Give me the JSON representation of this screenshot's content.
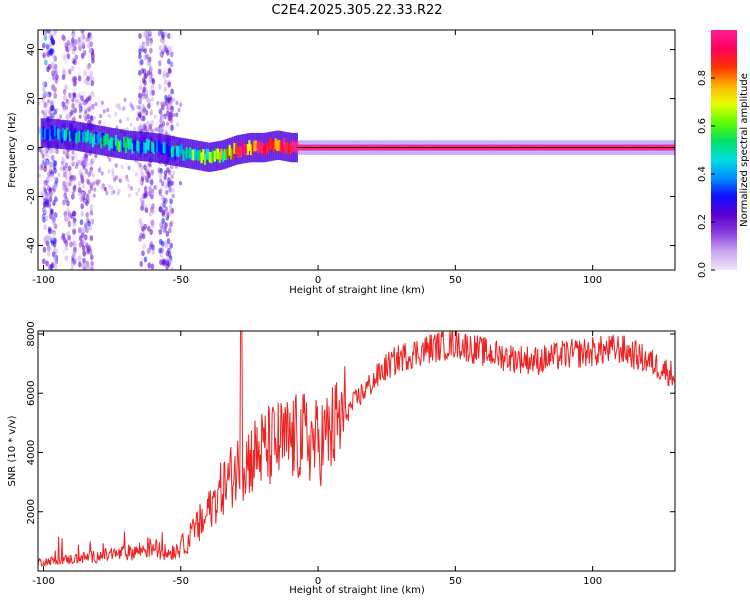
{
  "figure_title": "C2E4.2025.305.22.33.R22",
  "chart_data": [
    {
      "type": "heatmap",
      "xlabel": "Height of straight line (km)",
      "ylabel": "Frequency (Hz)",
      "xlim": [
        -102,
        130
      ],
      "ylim": [
        -50,
        48
      ],
      "x_ticks": [
        -100,
        -50,
        0,
        50,
        100
      ],
      "y_ticks": [
        -40,
        -20,
        0,
        20,
        40
      ],
      "colorbar": {
        "label": "Normalized spectral amplitude",
        "range": [
          0,
          1
        ],
        "ticks": [
          0.0,
          0.2,
          0.4,
          0.6,
          0.8
        ],
        "colors": [
          "#f0e6fb",
          "#c9a6f0",
          "#8a3fe0",
          "#5a00d0",
          "#1010ff",
          "#0090ff",
          "#00e0e0",
          "#00e060",
          "#60ff00",
          "#e8ff00",
          "#ffb000",
          "#ff3000",
          "#ff0060",
          "#ff2090"
        ]
      },
      "ridge": {
        "x": [
          -100,
          -90,
          -80,
          -70,
          -60,
          -55,
          -50,
          -45,
          -40,
          -35,
          -30,
          -25,
          -20,
          -15,
          -10,
          -5,
          0,
          20,
          50,
          80,
          100,
          130
        ],
        "frequency_hz": [
          6,
          5,
          3,
          1,
          0,
          -1,
          -2,
          -3,
          -4,
          -3,
          -1,
          0,
          0,
          1,
          0,
          0,
          0,
          0,
          0,
          0,
          0,
          0
        ],
        "amplitude": [
          0.35,
          0.4,
          0.4,
          0.45,
          0.4,
          0.35,
          0.45,
          0.55,
          0.6,
          0.65,
          0.8,
          0.85,
          0.9,
          0.9,
          0.95,
          1.0,
          1.0,
          1.0,
          1.0,
          1.0,
          1.0,
          1.0
        ]
      }
    },
    {
      "type": "line",
      "xlabel": "Height of straight line (km)",
      "ylabel": "SNR (10 * v/v)",
      "xlim": [
        -102,
        130
      ],
      "ylim": [
        0,
        8100
      ],
      "x_ticks": [
        -100,
        -50,
        0,
        50,
        100
      ],
      "y_ticks": [
        2000,
        4000,
        6000,
        8000
      ],
      "line_color": "#ee2222",
      "envelope": {
        "x": [
          -102,
          -90,
          -80,
          -70,
          -60,
          -55,
          -50,
          -45,
          -40,
          -35,
          -30,
          -25,
          -20,
          -15,
          -10,
          -5,
          0,
          5,
          10,
          15,
          20,
          25,
          30,
          40,
          50,
          60,
          70,
          80,
          90,
          100,
          110,
          120,
          130
        ],
        "snr": [
          300,
          400,
          500,
          600,
          800,
          600,
          800,
          1300,
          2000,
          2800,
          3400,
          3800,
          4100,
          4300,
          4400,
          4500,
          4300,
          4700,
          5300,
          5900,
          6400,
          6900,
          7200,
          7500,
          7700,
          7400,
          7200,
          7100,
          7300,
          7400,
          7500,
          7100,
          6600
        ]
      },
      "spike": {
        "x": -28,
        "snr": 8100
      }
    }
  ]
}
